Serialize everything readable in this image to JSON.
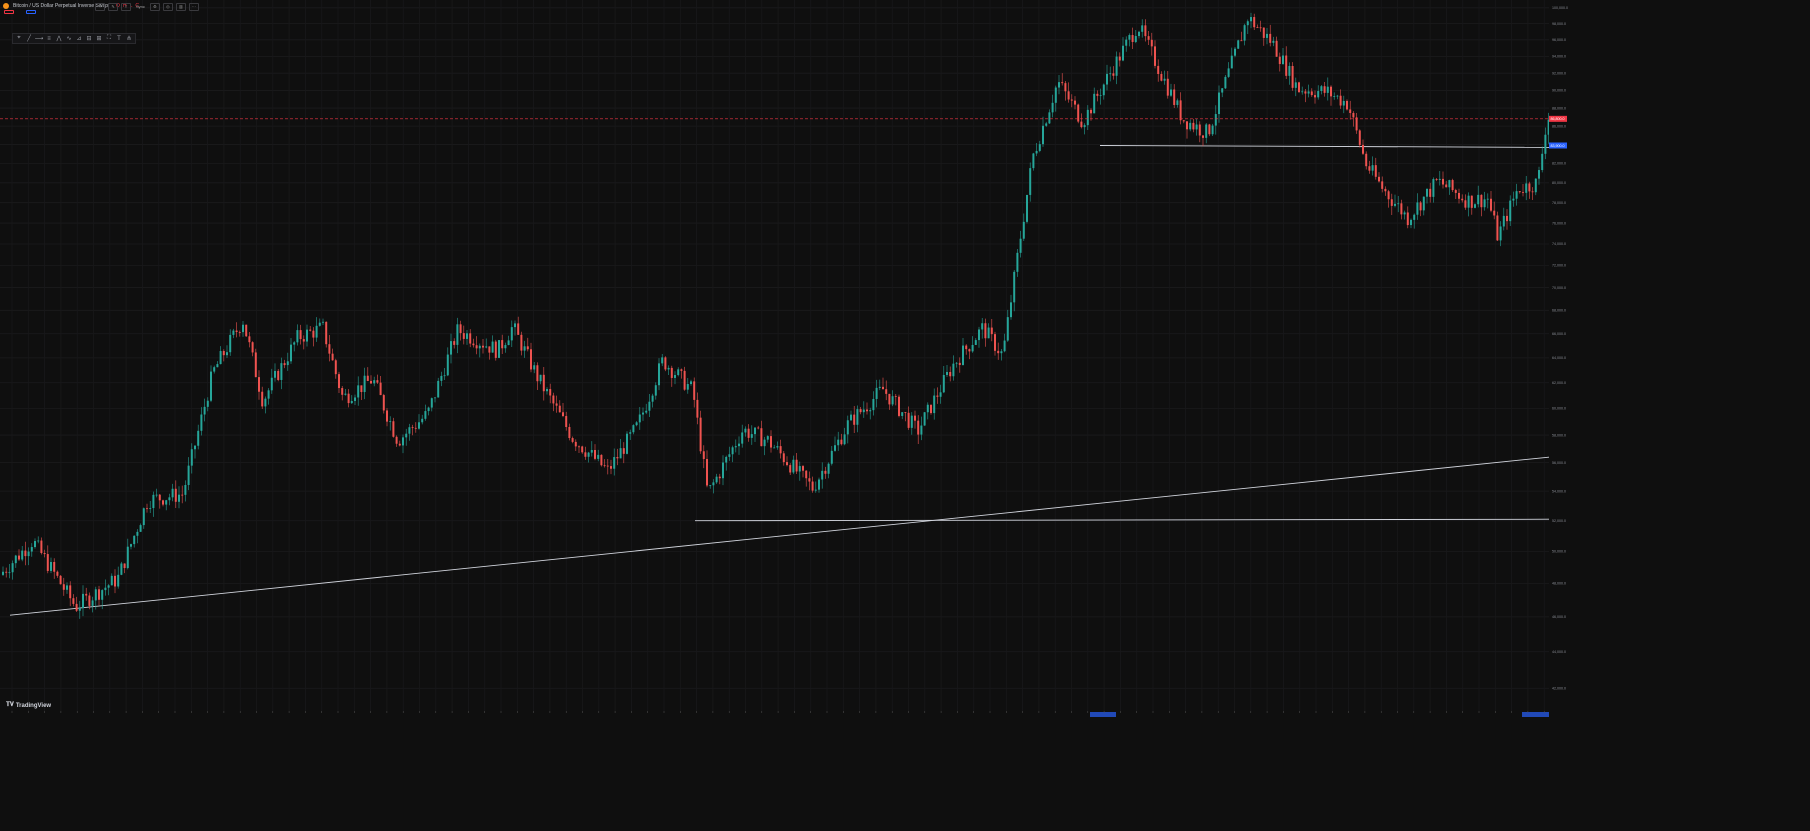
{
  "header": {
    "symbol_title": "Bitcoin / US Dollar Perpetual Inverse Swap",
    "ohlc": [
      "O",
      "H",
      "L",
      "C"
    ],
    "change_readout": "",
    "sell_price": "",
    "buy_price": "",
    "spread": ""
  },
  "toolbar": {
    "buttons": [
      "crosshair-icon",
      "brush-icon",
      "text-icon",
      "sync-icon",
      "settings-icon",
      "camera-icon",
      "trash-icon",
      "more-icon"
    ],
    "interval_label": "Sync"
  },
  "drawing_toolbar": {
    "tools": [
      "cursor-icon",
      "trendline-icon",
      "horizontal-ray-icon",
      "fib-icon",
      "pattern-icon",
      "elliott-icon",
      "projection-icon",
      "range-icon",
      "measure-icon",
      "frame-icon",
      "text-icon",
      "magnet-icon"
    ]
  },
  "branding": {
    "logo_text": "TradingView"
  },
  "colors": {
    "background": "#0f0f0f",
    "up": "#26a69a",
    "down": "#ef5350",
    "trendline": "#d1d4dc",
    "current_price_line": "#f23645",
    "axis_highlight": "#2962ff"
  },
  "chart_data": {
    "type": "candlestick",
    "y_scale": "log",
    "grid": true,
    "ylim": [
      40800,
      101000
    ],
    "price_ticks": [
      42000,
      44000,
      46000,
      48000,
      50000,
      52000,
      54000,
      56000,
      58000,
      60000,
      62000,
      64000,
      66000,
      68000,
      70000,
      72000,
      74000,
      76000,
      78000,
      80000,
      82000,
      84000,
      86000,
      88000,
      90000,
      92000,
      94000,
      96000,
      98000,
      100000
    ],
    "anchors": [
      [
        0,
        48400
      ],
      [
        35,
        50700
      ],
      [
        78,
        46600
      ],
      [
        120,
        48300
      ],
      [
        150,
        53400
      ],
      [
        185,
        53800
      ],
      [
        215,
        62800
      ],
      [
        245,
        67200
      ],
      [
        265,
        60600
      ],
      [
        300,
        65700
      ],
      [
        325,
        66500
      ],
      [
        345,
        60800
      ],
      [
        375,
        62300
      ],
      [
        400,
        57600
      ],
      [
        430,
        59600
      ],
      [
        460,
        66300
      ],
      [
        500,
        64600
      ],
      [
        515,
        66600
      ],
      [
        540,
        62400
      ],
      [
        575,
        57800
      ],
      [
        610,
        55400
      ],
      [
        640,
        58700
      ],
      [
        665,
        63800
      ],
      [
        695,
        61400
      ],
      [
        710,
        53800
      ],
      [
        745,
        58400
      ],
      [
        770,
        57600
      ],
      [
        815,
        54200
      ],
      [
        850,
        58800
      ],
      [
        885,
        61500
      ],
      [
        920,
        58300
      ],
      [
        955,
        63400
      ],
      [
        985,
        66500
      ],
      [
        1005,
        64200
      ],
      [
        1020,
        73000
      ],
      [
        1035,
        82700
      ],
      [
        1060,
        91000
      ],
      [
        1085,
        86500
      ],
      [
        1100,
        89500
      ],
      [
        1140,
        97900
      ],
      [
        1185,
        86800
      ],
      [
        1210,
        85200
      ],
      [
        1250,
        98800
      ],
      [
        1275,
        95600
      ],
      [
        1300,
        90200
      ],
      [
        1330,
        89800
      ],
      [
        1350,
        88500
      ],
      [
        1368,
        82000
      ],
      [
        1385,
        79400
      ],
      [
        1410,
        76500
      ],
      [
        1440,
        80200
      ],
      [
        1470,
        78200
      ],
      [
        1490,
        78400
      ],
      [
        1500,
        74700
      ],
      [
        1520,
        79400
      ],
      [
        1540,
        80000
      ],
      [
        1546,
        84400
      ],
      [
        1549,
        87000
      ]
    ],
    "current_price": 86800,
    "marker_labels": [
      "86,800.0",
      "83,900.0"
    ],
    "trendlines": [
      {
        "from": [
          10,
          46100
        ],
        "to": [
          1550,
          56400
        ]
      },
      {
        "from": [
          695,
          52000
        ],
        "to": [
          1550,
          52100
        ]
      },
      {
        "from": [
          1100,
          83900
        ],
        "to": [
          1550,
          83700
        ]
      }
    ],
    "x_tick_count": 95
  }
}
